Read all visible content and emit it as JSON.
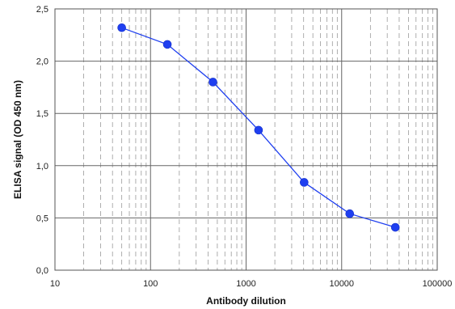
{
  "chart_data": {
    "type": "line",
    "title": "",
    "xlabel": "Antibody dilution",
    "ylabel": "ELISA signal (OD 450 nm)",
    "x_scale": "log",
    "xlim": [
      10,
      100000
    ],
    "ylim": [
      0,
      2.5
    ],
    "x_ticks": [
      10,
      100,
      1000,
      10000,
      100000
    ],
    "x_tick_labels": [
      "10",
      "100",
      "1000",
      "10000",
      "100000"
    ],
    "y_ticks": [
      0,
      0.5,
      1.0,
      1.5,
      2.0,
      2.5
    ],
    "y_tick_labels": [
      "0,0",
      "0,5",
      "1,0",
      "1,5",
      "2,0",
      "2,5"
    ],
    "grid": true,
    "legend": "none",
    "series": [
      {
        "color": "#1f3ff0",
        "points": [
          {
            "x": 50,
            "y": 2.32
          },
          {
            "x": 150,
            "y": 2.16
          },
          {
            "x": 450,
            "y": 1.8
          },
          {
            "x": 1350,
            "y": 1.34
          },
          {
            "x": 4050,
            "y": 0.84
          },
          {
            "x": 12150,
            "y": 0.54
          },
          {
            "x": 36450,
            "y": 0.41
          }
        ]
      }
    ]
  }
}
